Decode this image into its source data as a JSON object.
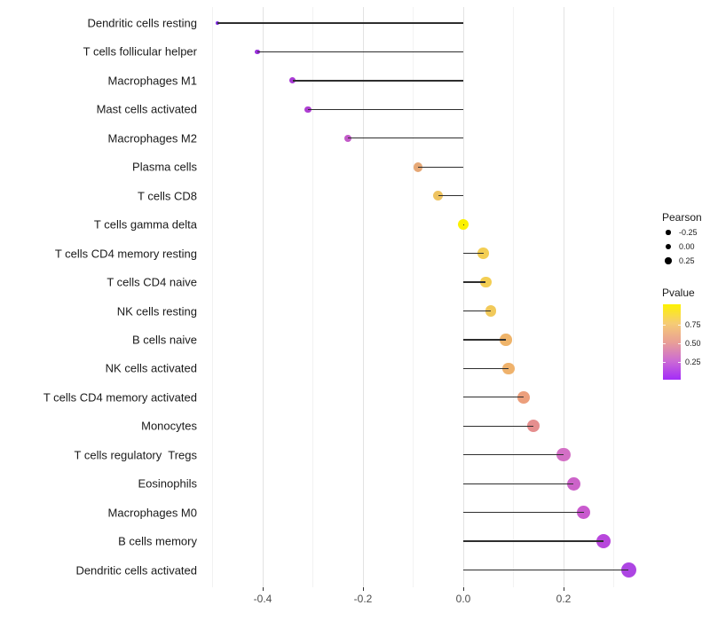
{
  "chart_data": {
    "type": "lollipop",
    "title": "",
    "xlabel": "",
    "ylabel": "",
    "x_axis": {
      "tick_labels": [
        "-0.4",
        "-0.2",
        "0.0",
        "0.2"
      ],
      "tick_values": [
        -0.4,
        -0.2,
        0.0,
        0.2
      ],
      "minor_tick_values": [
        -0.5,
        -0.3,
        -0.1,
        0.1,
        0.3
      ],
      "lim": [
        -0.52,
        0.365
      ]
    },
    "baseline_value": 0,
    "grid": "vertical-only",
    "points": [
      {
        "label": "Dendritic cells resting",
        "pearson": -0.49,
        "pvalue_color": "#7F2BE0"
      },
      {
        "label": "T cells follicular helper",
        "pearson": -0.41,
        "pvalue_color": "#9A31DC"
      },
      {
        "label": "Macrophages M1",
        "pearson": -0.34,
        "pvalue_color": "#A93AD6"
      },
      {
        "label": "Mast cells activated",
        "pearson": -0.31,
        "pvalue_color": "#AE3FD2"
      },
      {
        "label": "Macrophages M2",
        "pearson": -0.23,
        "pvalue_color": "#C35AC9"
      },
      {
        "label": "Plasma cells",
        "pearson": -0.09,
        "pvalue_color": "#E6A876"
      },
      {
        "label": "T cells CD8",
        "pearson": -0.05,
        "pvalue_color": "#EEC360"
      },
      {
        "label": "T cells gamma delta",
        "pearson": 0.0,
        "pvalue_color": "#FBF100"
      },
      {
        "label": "T cells CD4 memory resting",
        "pearson": 0.04,
        "pvalue_color": "#F3CE53"
      },
      {
        "label": "T cells CD4 naive",
        "pearson": 0.045,
        "pvalue_color": "#F3CE53"
      },
      {
        "label": "NK cells resting",
        "pearson": 0.055,
        "pvalue_color": "#F1C95A"
      },
      {
        "label": "B cells naive",
        "pearson": 0.085,
        "pvalue_color": "#EFB46A"
      },
      {
        "label": "NK cells activated",
        "pearson": 0.09,
        "pvalue_color": "#EFB26C"
      },
      {
        "label": "T cells CD4 memory activated",
        "pearson": 0.12,
        "pvalue_color": "#EC9F7C"
      },
      {
        "label": "Monocytes",
        "pearson": 0.14,
        "pvalue_color": "#E58E8E"
      },
      {
        "label": "T cells regulatory  Tregs",
        "pearson": 0.2,
        "pvalue_color": "#D36FC5"
      },
      {
        "label": "Eosinophils",
        "pearson": 0.22,
        "pvalue_color": "#CC63C9"
      },
      {
        "label": "Macrophages M0",
        "pearson": 0.24,
        "pvalue_color": "#C95ACE"
      },
      {
        "label": "B cells memory",
        "pearson": 0.28,
        "pvalue_color": "#B847DC"
      },
      {
        "label": "Dendritic cells activated",
        "pearson": 0.33,
        "pvalue_color": "#AD45E3"
      }
    ],
    "legend": {
      "pearson": {
        "title": "Pearson",
        "entries": [
          {
            "label": "-0.25",
            "r": 2.7
          },
          {
            "label": "0.00",
            "r": 3.2
          },
          {
            "label": "0.25",
            "r": 3.7
          }
        ]
      },
      "pvalue": {
        "title": "Pvalue",
        "tick_labels": [
          "0.75",
          "0.50",
          "0.25"
        ],
        "gradient_stops": [
          "#FDF200",
          "#F6CC74",
          "#E9A095",
          "#CC6BD4",
          "#A32CF8"
        ]
      }
    },
    "colors": {
      "background": "#FFFFFF",
      "stick": "#2E2E2E",
      "grid_major": "#E3E3E3",
      "grid_minor": "#F2F2F2",
      "axis_text": "#4D4D4D",
      "category_text": "#1A1A1A",
      "legend_dot": "#000000"
    }
  }
}
